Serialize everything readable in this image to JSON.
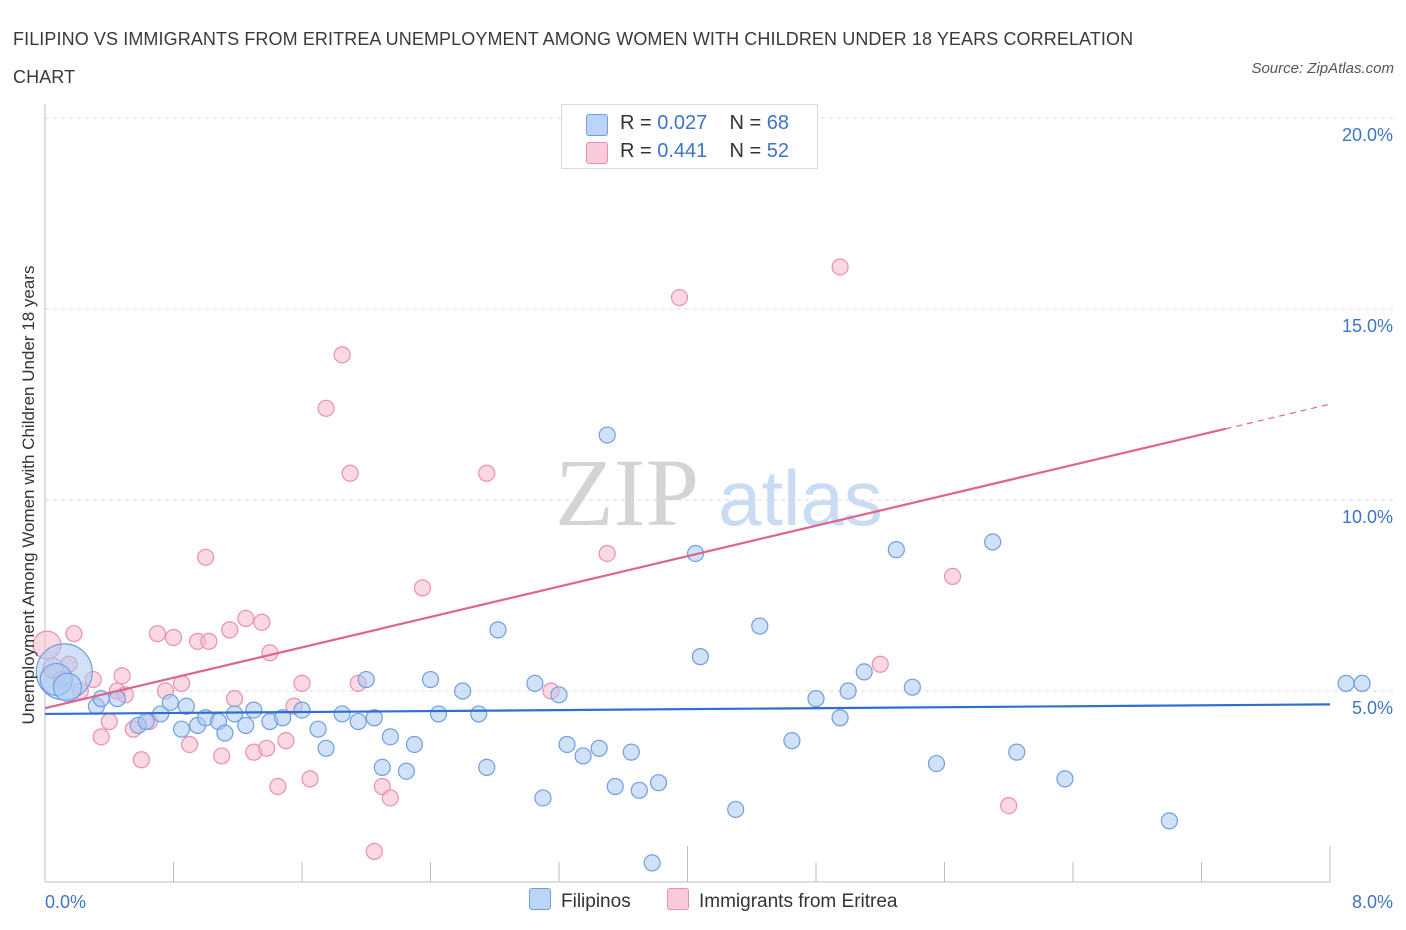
{
  "title": "FILIPINO VS IMMIGRANTS FROM ERITREA UNEMPLOYMENT AMONG WOMEN WITH CHILDREN UNDER 18 YEARS CORRELATION CHART",
  "source": "Source: ZipAtlas.com",
  "watermark": {
    "zip": "ZIP",
    "atlas": "atlas"
  },
  "legend": {
    "rows": [
      {
        "r_label": "R = ",
        "r_value": "0.027",
        "n_label": "N = ",
        "n_value": "68"
      },
      {
        "r_label": "R = ",
        "r_value": "0.441",
        "n_label": "N = ",
        "n_value": "52"
      }
    ]
  },
  "bottom_legend": [
    "Filipinos",
    "Immigrants from Eritrea"
  ],
  "colors": {
    "blue_fill": "#a9c8f2",
    "blue_stroke": "#6f9fe0",
    "blue_line": "#2f6fd0",
    "pink_fill": "#f6b9cc",
    "pink_stroke": "#ec8fae",
    "pink_line": "#e0628f",
    "label_blue": "#3e74c8",
    "grid": "#d9d9d9"
  },
  "chart_data": {
    "type": "scatter",
    "title": "FILIPINO VS IMMIGRANTS FROM ERITREA UNEMPLOYMENT AMONG WOMEN WITH CHILDREN UNDER 18 YEARS CORRELATION CHART",
    "xlabel": "",
    "ylabel": "Unemployment Among Women with Children Under 18 years",
    "xlim": [
      0,
      8
    ],
    "ylim": [
      0,
      20
    ],
    "x_tick_labels": [
      "0.0%",
      "8.0%"
    ],
    "y_ticks": [
      5,
      10,
      15,
      20
    ],
    "y_tick_labels": [
      "5.0%",
      "10.0%",
      "15.0%",
      "20.0%"
    ],
    "grid": true,
    "legend_position": "top-center",
    "series": [
      {
        "name": "Filipinos",
        "r": 0.027,
        "n": 68,
        "trend": {
          "x0": 0.0,
          "y0": 4.4,
          "x1": 8.0,
          "y1": 4.65,
          "solid_until": 8.0
        },
        "points": [
          [
            0.12,
            5.5,
            28
          ],
          [
            0.07,
            5.3,
            16
          ],
          [
            0.14,
            5.1,
            14
          ],
          [
            0.32,
            4.6,
            8
          ],
          [
            0.35,
            4.8,
            8
          ],
          [
            0.45,
            4.8,
            8
          ],
          [
            0.58,
            4.1,
            8
          ],
          [
            0.63,
            4.2,
            8
          ],
          [
            0.72,
            4.4,
            8
          ],
          [
            0.78,
            4.7,
            8
          ],
          [
            0.85,
            4.0,
            8
          ],
          [
            0.88,
            4.6,
            8
          ],
          [
            0.95,
            4.1,
            8
          ],
          [
            1.0,
            4.3,
            8
          ],
          [
            1.08,
            4.2,
            8
          ],
          [
            1.12,
            3.9,
            8
          ],
          [
            1.18,
            4.4,
            8
          ],
          [
            1.25,
            4.1,
            8
          ],
          [
            1.3,
            4.5,
            8
          ],
          [
            1.4,
            4.2,
            8
          ],
          [
            1.48,
            4.3,
            8
          ],
          [
            1.6,
            4.5,
            8
          ],
          [
            1.7,
            4.0,
            8
          ],
          [
            1.75,
            3.5,
            8
          ],
          [
            1.85,
            4.4,
            8
          ],
          [
            1.95,
            4.2,
            8
          ],
          [
            2.0,
            5.3,
            8
          ],
          [
            2.05,
            4.3,
            8
          ],
          [
            2.1,
            3.0,
            8
          ],
          [
            2.15,
            3.8,
            8
          ],
          [
            2.25,
            2.9,
            8
          ],
          [
            2.3,
            3.6,
            8
          ],
          [
            2.4,
            5.3,
            8
          ],
          [
            2.45,
            4.4,
            8
          ],
          [
            2.6,
            5.0,
            8
          ],
          [
            2.7,
            4.4,
            8
          ],
          [
            2.75,
            3.0,
            8
          ],
          [
            2.82,
            6.6,
            8
          ],
          [
            3.05,
            5.2,
            8
          ],
          [
            3.1,
            2.2,
            8
          ],
          [
            3.2,
            4.9,
            8
          ],
          [
            3.25,
            3.6,
            8
          ],
          [
            3.35,
            3.3,
            8
          ],
          [
            3.45,
            3.5,
            8
          ],
          [
            3.5,
            11.7,
            8
          ],
          [
            3.55,
            2.5,
            8
          ],
          [
            3.65,
            3.4,
            8
          ],
          [
            3.7,
            2.4,
            8
          ],
          [
            3.78,
            0.5,
            8
          ],
          [
            3.82,
            2.6,
            8
          ],
          [
            4.05,
            8.6,
            8
          ],
          [
            4.08,
            5.9,
            8
          ],
          [
            4.3,
            1.9,
            8
          ],
          [
            4.45,
            6.7,
            8
          ],
          [
            4.65,
            3.7,
            8
          ],
          [
            4.8,
            4.8,
            8
          ],
          [
            4.95,
            4.3,
            8
          ],
          [
            5.0,
            5.0,
            8
          ],
          [
            5.1,
            5.5,
            8
          ],
          [
            5.3,
            8.7,
            8
          ],
          [
            5.4,
            5.1,
            8
          ],
          [
            5.55,
            3.1,
            8
          ],
          [
            5.9,
            8.9,
            8
          ],
          [
            6.05,
            3.4,
            8
          ],
          [
            6.35,
            2.7,
            8
          ],
          [
            7.0,
            1.6,
            8
          ],
          [
            8.1,
            5.2,
            8
          ],
          [
            8.2,
            5.2,
            8
          ]
        ]
      },
      {
        "name": "Immigrants from Eritrea",
        "r": 0.441,
        "n": 52,
        "trend": {
          "x0": 0.0,
          "y0": 4.55,
          "x1": 10.0,
          "y1": 14.5,
          "solid_until": 7.35
        },
        "points": [
          [
            0.0,
            6.2,
            14
          ],
          [
            0.05,
            5.6,
            10
          ],
          [
            0.1,
            5.3,
            8
          ],
          [
            0.15,
            5.7,
            8
          ],
          [
            0.18,
            6.5,
            8
          ],
          [
            0.22,
            5.0,
            8
          ],
          [
            0.3,
            5.3,
            8
          ],
          [
            0.35,
            3.8,
            8
          ],
          [
            0.4,
            4.2,
            8
          ],
          [
            0.45,
            5.0,
            8
          ],
          [
            0.48,
            5.4,
            8
          ],
          [
            0.5,
            4.9,
            8
          ],
          [
            0.55,
            4.0,
            8
          ],
          [
            0.6,
            3.2,
            8
          ],
          [
            0.65,
            4.2,
            8
          ],
          [
            0.7,
            6.5,
            8
          ],
          [
            0.75,
            5.0,
            8
          ],
          [
            0.8,
            6.4,
            8
          ],
          [
            0.85,
            5.2,
            8
          ],
          [
            0.9,
            3.6,
            8
          ],
          [
            0.95,
            6.3,
            8
          ],
          [
            1.0,
            8.5,
            8
          ],
          [
            1.02,
            6.3,
            8
          ],
          [
            1.1,
            3.3,
            8
          ],
          [
            1.15,
            6.6,
            8
          ],
          [
            1.18,
            4.8,
            8
          ],
          [
            1.25,
            6.9,
            8
          ],
          [
            1.3,
            3.4,
            8
          ],
          [
            1.35,
            6.8,
            8
          ],
          [
            1.38,
            3.5,
            8
          ],
          [
            1.4,
            6.0,
            8
          ],
          [
            1.45,
            2.5,
            8
          ],
          [
            1.5,
            3.7,
            8
          ],
          [
            1.55,
            4.6,
            8
          ],
          [
            1.6,
            5.2,
            8
          ],
          [
            1.65,
            2.7,
            8
          ],
          [
            1.75,
            12.4,
            8
          ],
          [
            1.85,
            13.8,
            8
          ],
          [
            1.9,
            10.7,
            8
          ],
          [
            1.95,
            5.2,
            8
          ],
          [
            2.05,
            0.8,
            8
          ],
          [
            2.1,
            2.5,
            8
          ],
          [
            2.15,
            2.2,
            8
          ],
          [
            2.35,
            7.7,
            8
          ],
          [
            2.75,
            10.7,
            8
          ],
          [
            3.15,
            5.0,
            8
          ],
          [
            3.5,
            8.6,
            8
          ],
          [
            3.95,
            15.3,
            8
          ],
          [
            4.95,
            16.1,
            8
          ],
          [
            5.2,
            5.7,
            8
          ],
          [
            5.65,
            8.0,
            8
          ],
          [
            6.0,
            2.0,
            8
          ]
        ]
      }
    ]
  }
}
